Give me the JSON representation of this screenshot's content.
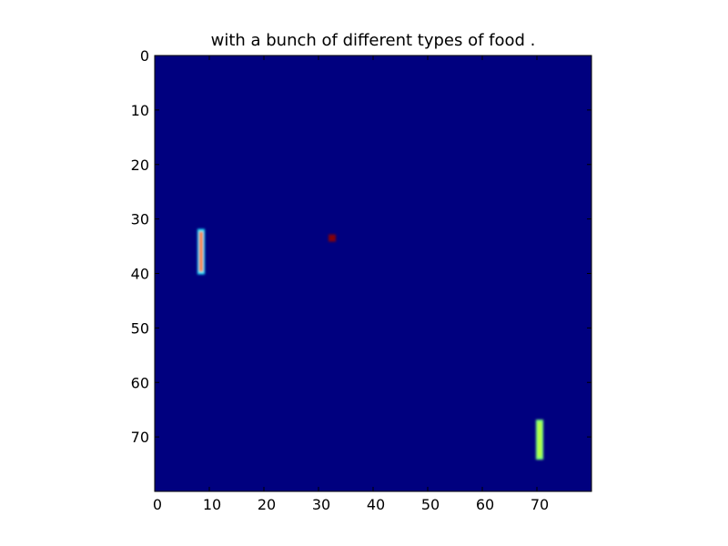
{
  "chart_data": {
    "type": "heatmap",
    "title": "with a bunch of different types of food .",
    "xlabel": "",
    "ylabel": "",
    "xlim": [
      0,
      80
    ],
    "ylim": [
      80,
      0
    ],
    "x_ticks": [
      0,
      10,
      20,
      30,
      40,
      50,
      60,
      70
    ],
    "y_ticks": [
      0,
      10,
      20,
      30,
      40,
      50,
      60,
      70
    ],
    "grid": false,
    "colormap": "jet",
    "background_value": 0,
    "background_color": "#00007f",
    "regions": [
      {
        "name": "",
        "x": [
          8,
          9
        ],
        "y": [
          32,
          40
        ],
        "value": 0.8,
        "color": "#ff7a00",
        "edge_color": "#22e6ff"
      },
      {
        "name": "",
        "x": [
          32,
          33
        ],
        "y": [
          33,
          34
        ],
        "value": 1.0,
        "color": "#8b0000",
        "edge_color": "#7f0010"
      },
      {
        "name": "",
        "x": [
          70,
          71
        ],
        "y": [
          67,
          74
        ],
        "value": 0.65,
        "color": "#b8ff3a",
        "edge_color": "#7fff7a"
      }
    ]
  }
}
